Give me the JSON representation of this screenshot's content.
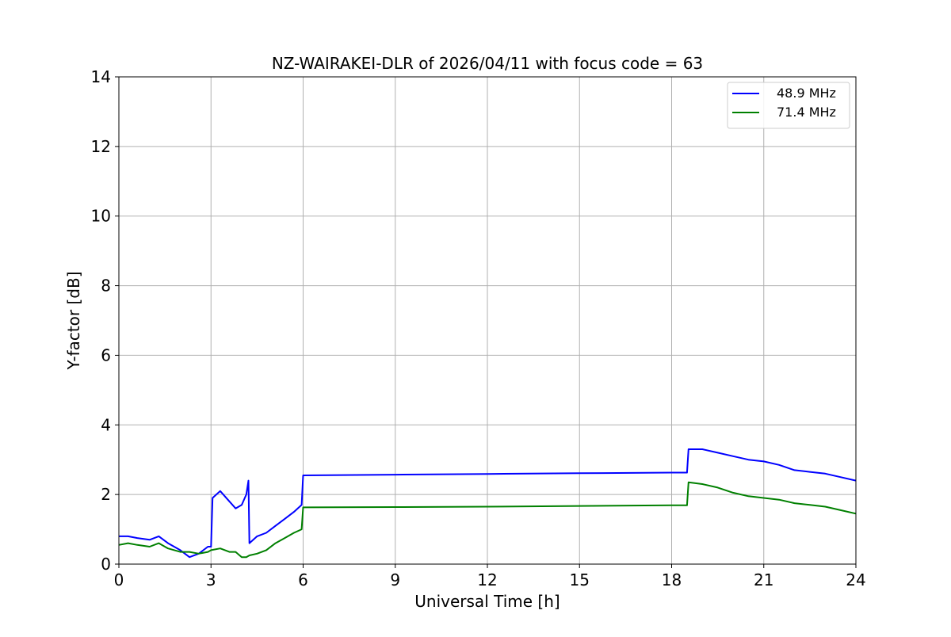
{
  "chart_data": {
    "type": "line",
    "title": "NZ-WAIRAKEI-DLR of 2026/04/11 with focus code = 63",
    "xlabel": "Universal Time [h]",
    "ylabel": "Y-factor [dB]",
    "xlim": [
      0,
      24
    ],
    "ylim": [
      0,
      14
    ],
    "xticks": [
      "0",
      "3",
      "6",
      "9",
      "12",
      "15",
      "18",
      "21",
      "24"
    ],
    "yticks": [
      "0",
      "2",
      "4",
      "6",
      "8",
      "10",
      "12",
      "14"
    ],
    "grid": true,
    "legend_position": "top-right",
    "series": [
      {
        "name": "48.9 MHz",
        "color": "#0000ff",
        "x": [
          0,
          0.3,
          0.6,
          1.0,
          1.3,
          1.6,
          2.0,
          2.3,
          2.6,
          2.9,
          3.0,
          3.05,
          3.3,
          3.6,
          3.8,
          4.0,
          4.15,
          4.22,
          4.25,
          4.5,
          4.8,
          5.1,
          5.4,
          5.7,
          5.95,
          6.0,
          9.0,
          12.0,
          15.0,
          18.0,
          18.5,
          18.55,
          19.0,
          19.5,
          20.0,
          20.5,
          21.0,
          21.5,
          22.0,
          22.5,
          23.0,
          23.5,
          24.0
        ],
        "y": [
          0.8,
          0.8,
          0.75,
          0.7,
          0.8,
          0.6,
          0.4,
          0.2,
          0.3,
          0.5,
          0.5,
          1.9,
          2.1,
          1.8,
          1.6,
          1.7,
          2.0,
          2.4,
          0.6,
          0.8,
          0.9,
          1.1,
          1.3,
          1.5,
          1.7,
          2.55,
          2.57,
          2.59,
          2.61,
          2.63,
          2.63,
          3.3,
          3.3,
          3.2,
          3.1,
          3.0,
          2.95,
          2.85,
          2.7,
          2.65,
          2.6,
          2.5,
          2.4
        ]
      },
      {
        "name": "71.4 MHz",
        "color": "#008000",
        "x": [
          0,
          0.3,
          0.6,
          1.0,
          1.3,
          1.6,
          2.0,
          2.3,
          2.6,
          2.9,
          3.0,
          3.3,
          3.6,
          3.8,
          4.0,
          4.15,
          4.25,
          4.5,
          4.8,
          5.1,
          5.4,
          5.7,
          5.95,
          6.0,
          9.0,
          12.0,
          15.0,
          18.0,
          18.5,
          18.55,
          19.0,
          19.5,
          20.0,
          20.5,
          21.0,
          21.5,
          22.0,
          22.5,
          23.0,
          23.5,
          24.0
        ],
        "y": [
          0.55,
          0.6,
          0.55,
          0.5,
          0.6,
          0.45,
          0.35,
          0.35,
          0.3,
          0.35,
          0.4,
          0.45,
          0.35,
          0.35,
          0.2,
          0.2,
          0.25,
          0.3,
          0.4,
          0.6,
          0.75,
          0.9,
          1.0,
          1.63,
          1.64,
          1.65,
          1.67,
          1.69,
          1.69,
          2.35,
          2.3,
          2.2,
          2.05,
          1.95,
          1.9,
          1.85,
          1.75,
          1.7,
          1.65,
          1.55,
          1.45
        ]
      }
    ]
  }
}
